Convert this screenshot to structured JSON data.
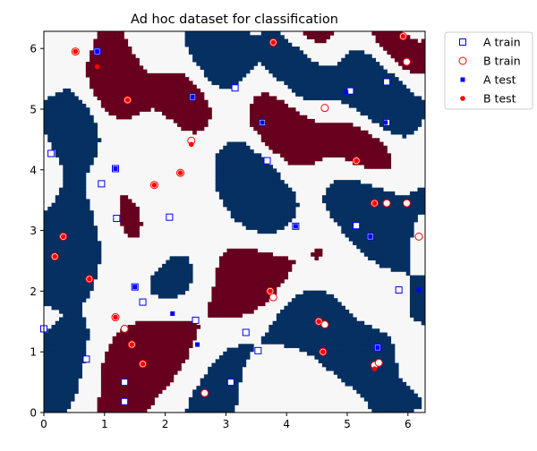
{
  "chart_data": {
    "type": "scatter",
    "title": "Ad hoc dataset for classification",
    "xlabel": "",
    "ylabel": "",
    "xlim": [
      0,
      6.283
    ],
    "ylim": [
      0,
      6.283
    ],
    "xticks": [
      0,
      1,
      2,
      3,
      4,
      5,
      6
    ],
    "yticks": [
      0,
      1,
      2,
      3,
      4,
      5,
      6
    ],
    "grid": false,
    "legend_position": "outside-top-right",
    "background": {
      "type": "heatmap",
      "description_colors": {
        "A": "#053061",
        "B": "#67001f",
        "neutral": "#f7f7f7"
      },
      "grid_size": 100
    },
    "colors": {
      "A_train_edge": "#0000ff",
      "B_train_edge": "#ff0000",
      "A_test": "#0000ff",
      "B_test": "#ff0000",
      "region_A": "#053061",
      "region_B": "#67001f",
      "region_neutral": "#f7f7f7"
    },
    "series": [
      {
        "name": "A train",
        "marker": "square-open",
        "points": [
          [
            0.88,
            5.95
          ],
          [
            3.15,
            5.35
          ],
          [
            2.45,
            5.2
          ],
          [
            5.05,
            5.3
          ],
          [
            5.65,
            5.45
          ],
          [
            3.6,
            4.78
          ],
          [
            5.65,
            4.78
          ],
          [
            0.12,
            4.27
          ],
          [
            3.68,
            4.15
          ],
          [
            1.18,
            4.02
          ],
          [
            0.95,
            3.77
          ],
          [
            1.2,
            3.2
          ],
          [
            2.07,
            3.22
          ],
          [
            4.15,
            3.07
          ],
          [
            5.15,
            3.08
          ],
          [
            5.38,
            2.9
          ],
          [
            1.5,
            2.07
          ],
          [
            1.63,
            1.82
          ],
          [
            5.85,
            2.02
          ],
          [
            2.5,
            1.52
          ],
          [
            3.33,
            1.32
          ],
          [
            5.5,
            1.07
          ],
          [
            3.53,
            1.02
          ],
          [
            0.7,
            0.88
          ],
          [
            1.33,
            0.5
          ],
          [
            3.08,
            0.5
          ],
          [
            1.33,
            0.18
          ],
          [
            0.0,
            1.38
          ]
        ]
      },
      {
        "name": "B train",
        "marker": "circle-open",
        "points": [
          [
            0.52,
            5.95
          ],
          [
            1.38,
            5.15
          ],
          [
            3.78,
            6.1
          ],
          [
            4.63,
            5.02
          ],
          [
            5.92,
            6.2
          ],
          [
            5.98,
            5.78
          ],
          [
            2.43,
            4.48
          ],
          [
            2.25,
            3.95
          ],
          [
            1.82,
            3.75
          ],
          [
            5.15,
            4.15
          ],
          [
            5.45,
            3.45
          ],
          [
            5.65,
            3.45
          ],
          [
            5.98,
            3.45
          ],
          [
            0.32,
            2.9
          ],
          [
            6.18,
            2.9
          ],
          [
            0.18,
            2.57
          ],
          [
            0.75,
            2.2
          ],
          [
            3.73,
            2.0
          ],
          [
            3.78,
            1.9
          ],
          [
            1.18,
            1.57
          ],
          [
            1.33,
            1.38
          ],
          [
            4.53,
            1.5
          ],
          [
            4.63,
            1.45
          ],
          [
            1.45,
            1.12
          ],
          [
            4.6,
            1.0
          ],
          [
            1.63,
            0.8
          ],
          [
            5.45,
            0.78
          ],
          [
            5.52,
            0.82
          ],
          [
            2.65,
            0.32
          ]
        ]
      },
      {
        "name": "A test",
        "marker": "square-filled",
        "points": [
          [
            0.88,
            5.95
          ],
          [
            4.98,
            5.28
          ],
          [
            2.45,
            5.2
          ],
          [
            3.6,
            4.78
          ],
          [
            5.63,
            4.78
          ],
          [
            1.18,
            4.02
          ],
          [
            4.15,
            3.07
          ],
          [
            5.38,
            2.9
          ],
          [
            1.5,
            2.07
          ],
          [
            6.18,
            2.02
          ],
          [
            2.12,
            1.63
          ],
          [
            2.53,
            1.12
          ],
          [
            5.5,
            1.07
          ]
        ]
      },
      {
        "name": "B test",
        "marker": "circle-filled",
        "points": [
          [
            0.52,
            5.95
          ],
          [
            0.88,
            5.7
          ],
          [
            1.38,
            5.15
          ],
          [
            3.78,
            6.1
          ],
          [
            5.92,
            6.2
          ],
          [
            2.43,
            4.42
          ],
          [
            2.25,
            3.95
          ],
          [
            1.82,
            3.75
          ],
          [
            5.15,
            4.15
          ],
          [
            5.45,
            3.45
          ],
          [
            0.32,
            2.9
          ],
          [
            0.18,
            2.57
          ],
          [
            0.75,
            2.2
          ],
          [
            3.73,
            2.0
          ],
          [
            1.18,
            1.57
          ],
          [
            4.53,
            1.5
          ],
          [
            1.45,
            1.12
          ],
          [
            1.63,
            0.8
          ],
          [
            4.6,
            1.0
          ],
          [
            5.45,
            0.72
          ]
        ]
      }
    ]
  }
}
